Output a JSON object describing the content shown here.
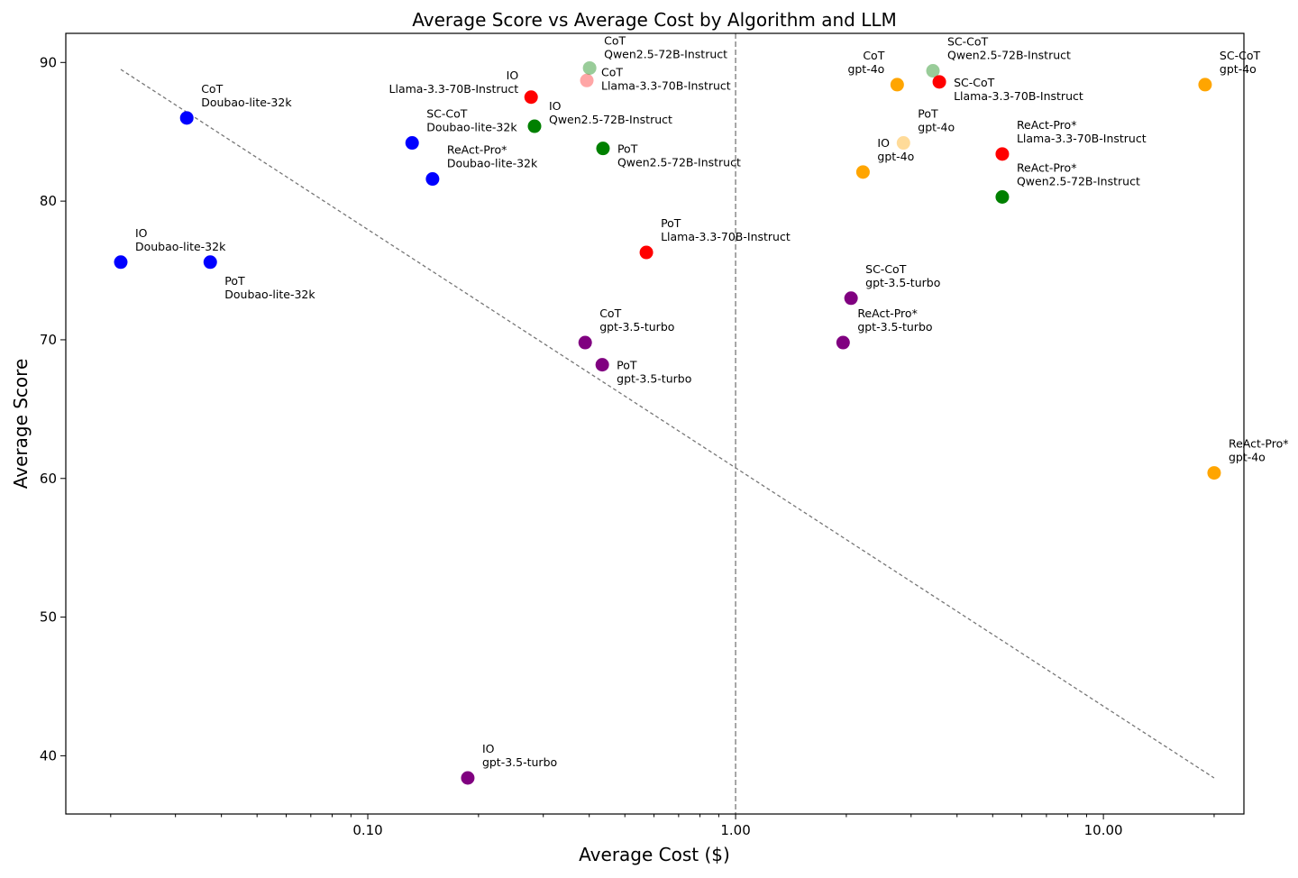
{
  "chart_data": {
    "type": "scatter",
    "title": "Average Score vs Average Cost by Algorithm and LLM",
    "xlabel": "Average Cost ($)",
    "ylabel": "Average Score",
    "xscale": "log",
    "xlim": [
      0.0151,
      24.1
    ],
    "ylim": [
      35.8,
      92.1
    ],
    "xticks": [
      {
        "v": 0.1,
        "label": "0.10"
      },
      {
        "v": 1,
        "label": "1.00"
      },
      {
        "v": 10,
        "label": "10.00"
      }
    ],
    "yticks": [
      40,
      50,
      60,
      70,
      80,
      90
    ],
    "grid": false,
    "reference_line_x": 1.0,
    "trend_line": {
      "x": [
        0.0213,
        20.0
      ],
      "y": [
        89.5,
        38.4
      ]
    },
    "colors": {
      "Doubao-lite-32k": "#0000ff",
      "Llama-3.3-70B-Instruct": "#ff0000",
      "Qwen2.5-72B-Instruct": "#008000",
      "gpt-3.5-turbo": "#800080",
      "gpt-4o": "#ffa500"
    },
    "points": [
      {
        "algo": "IO",
        "llm": "Doubao-lite-32k",
        "cost": 0.0213,
        "score": 75.6,
        "alpha": 1
      },
      {
        "algo": "PoT",
        "llm": "Doubao-lite-32k",
        "cost": 0.0373,
        "score": 75.6,
        "alpha": 1
      },
      {
        "algo": "CoT",
        "llm": "Doubao-lite-32k",
        "cost": 0.0322,
        "score": 86.0,
        "alpha": 1
      },
      {
        "algo": "SC-CoT",
        "llm": "Doubao-lite-32k",
        "cost": 0.132,
        "score": 84.2,
        "alpha": 1
      },
      {
        "algo": "ReAct-Pro*",
        "llm": "Doubao-lite-32k",
        "cost": 0.15,
        "score": 81.6,
        "alpha": 1
      },
      {
        "algo": "IO",
        "llm": "Llama-3.3-70B-Instruct",
        "cost": 0.278,
        "score": 87.5,
        "alpha": 1
      },
      {
        "algo": "CoT",
        "llm": "Llama-3.3-70B-Instruct",
        "cost": 0.394,
        "score": 88.7,
        "alpha": 0.35
      },
      {
        "algo": "CoT",
        "llm": "Qwen2.5-72B-Instruct",
        "cost": 0.401,
        "score": 89.6,
        "alpha": 0.4
      },
      {
        "algo": "IO",
        "llm": "Qwen2.5-72B-Instruct",
        "cost": 0.284,
        "score": 85.4,
        "alpha": 1
      },
      {
        "algo": "PoT",
        "llm": "Qwen2.5-72B-Instruct",
        "cost": 0.436,
        "score": 83.8,
        "alpha": 1
      },
      {
        "algo": "PoT",
        "llm": "Llama-3.3-70B-Instruct",
        "cost": 0.572,
        "score": 76.3,
        "alpha": 1
      },
      {
        "algo": "CoT",
        "llm": "gpt-3.5-turbo",
        "cost": 0.39,
        "score": 69.8,
        "alpha": 1
      },
      {
        "algo": "PoT",
        "llm": "gpt-3.5-turbo",
        "cost": 0.434,
        "score": 68.2,
        "alpha": 1
      },
      {
        "algo": "IO",
        "llm": "gpt-3.5-turbo",
        "cost": 0.187,
        "score": 38.4,
        "alpha": 1
      },
      {
        "algo": "SC-CoT",
        "llm": "gpt-3.5-turbo",
        "cost": 2.06,
        "score": 73.0,
        "alpha": 1
      },
      {
        "algo": "ReAct-Pro*",
        "llm": "gpt-3.5-turbo",
        "cost": 1.96,
        "score": 69.8,
        "alpha": 1
      },
      {
        "algo": "IO",
        "llm": "gpt-4o",
        "cost": 2.22,
        "score": 82.1,
        "alpha": 1
      },
      {
        "algo": "PoT",
        "llm": "gpt-4o",
        "cost": 2.86,
        "score": 84.2,
        "alpha": 0.4
      },
      {
        "algo": "CoT",
        "llm": "gpt-4o",
        "cost": 2.75,
        "score": 88.4,
        "alpha": 1
      },
      {
        "algo": "SC-CoT",
        "llm": "Qwen2.5-72B-Instruct",
        "cost": 3.44,
        "score": 89.4,
        "alpha": 0.4
      },
      {
        "algo": "SC-CoT",
        "llm": "Llama-3.3-70B-Instruct",
        "cost": 3.58,
        "score": 88.6,
        "alpha": 1
      },
      {
        "algo": "ReAct-Pro*",
        "llm": "Llama-3.3-70B-Instruct",
        "cost": 5.31,
        "score": 83.4,
        "alpha": 1
      },
      {
        "algo": "ReAct-Pro*",
        "llm": "Qwen2.5-72B-Instruct",
        "cost": 5.31,
        "score": 80.3,
        "alpha": 1
      },
      {
        "algo": "SC-CoT",
        "llm": "gpt-4o",
        "cost": 18.9,
        "score": 88.4,
        "alpha": 1
      },
      {
        "algo": "ReAct-Pro*",
        "llm": "gpt-4o",
        "cost": 20.0,
        "score": 60.4,
        "alpha": 1
      }
    ]
  }
}
